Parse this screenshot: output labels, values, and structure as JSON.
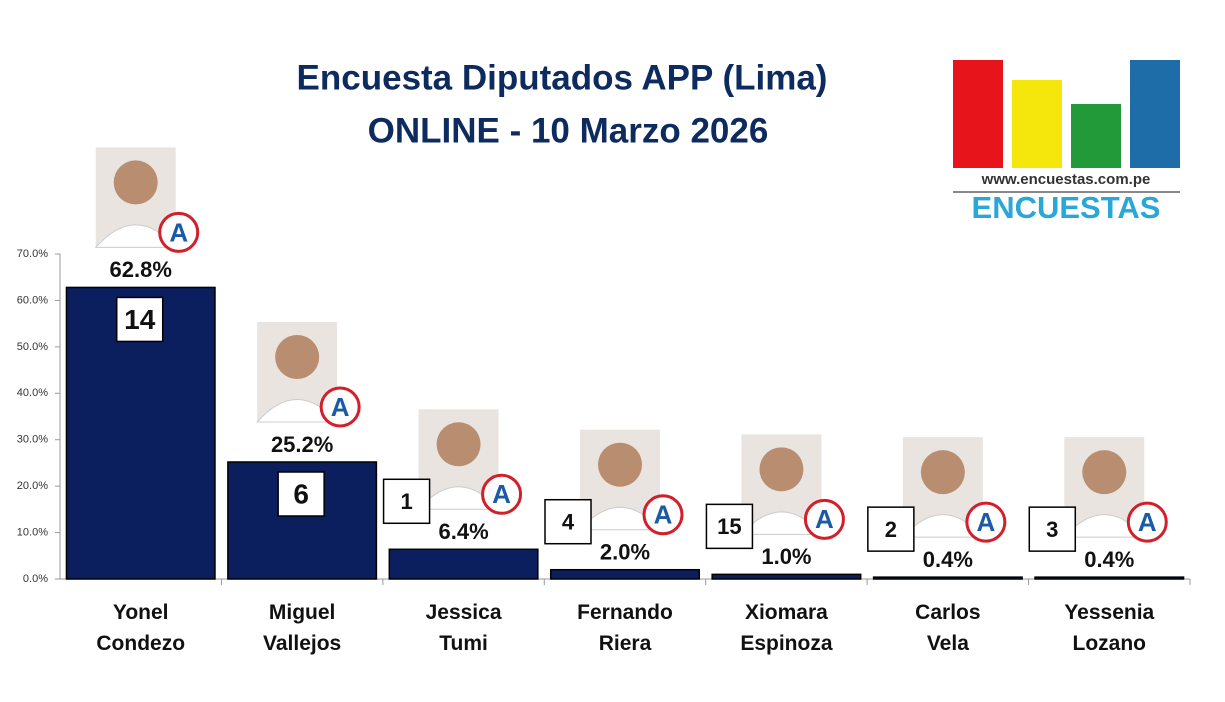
{
  "chart_data": {
    "type": "bar",
    "title": [
      "Encuesta Diputados APP (Lima)",
      "ONLINE - 10 Marzo 2026"
    ],
    "categories": [
      "Yonel\nCondezo",
      "Miguel\nVallejos",
      "Jessica\nTumi",
      "Fernando\nRiera",
      "Xiomara\nEspinoza",
      "Carlos\nVela",
      "Yessenia\nLozano"
    ],
    "values": [
      62.8,
      25.2,
      6.4,
      2.0,
      1.0,
      0.4,
      0.4
    ],
    "value_labels": [
      "62.8%",
      "25.2%",
      "6.4%",
      "2.0%",
      "1.0%",
      "0.4%",
      "0.4%"
    ],
    "ballot_numbers": [
      "14",
      "6",
      "1",
      "4",
      "15",
      "2",
      "3"
    ],
    "party_logo": "A",
    "color": "#0b1f5e",
    "ylim": [
      0,
      70
    ],
    "yticks": [
      {
        "value": 0,
        "label": "0.0%"
      },
      {
        "value": 10,
        "label": "10.0%"
      },
      {
        "value": 20,
        "label": "20.0%"
      },
      {
        "value": 30,
        "label": "30.0%"
      },
      {
        "value": 40,
        "label": "40.0%"
      },
      {
        "value": 50,
        "label": "50.0%"
      },
      {
        "value": 60,
        "label": "60.0%"
      },
      {
        "value": 70,
        "label": "70.0%"
      }
    ],
    "logo": {
      "url": "www.encuestas.com.pe",
      "name": "ENCUESTAS"
    }
  }
}
